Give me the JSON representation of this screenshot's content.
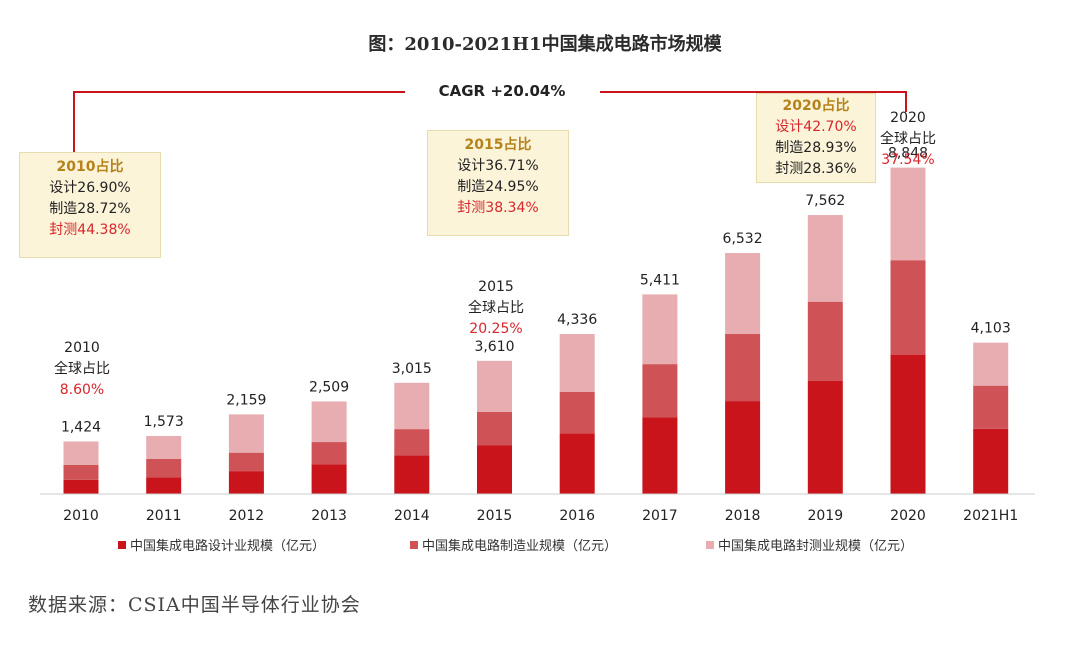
{
  "title": "图：2010-2021H1中国集成电路市场规模",
  "cagr_label": "CAGR +20.04%",
  "source": "数据来源：CSIA中国半导体行业协会",
  "colors": {
    "design": "#c8141a",
    "manufacture": "#cf5356",
    "packaging": "#e7adb0",
    "axis": "#cccccc",
    "highlight": "#d7262c",
    "box_bg": "#fbf4d9",
    "box_head": "#b5821b"
  },
  "chart_data": {
    "type": "bar",
    "stacked": true,
    "categories": [
      "2010",
      "2011",
      "2012",
      "2013",
      "2014",
      "2015",
      "2016",
      "2017",
      "2018",
      "2019",
      "2020",
      "2021H1"
    ],
    "totals": [
      1424,
      1573,
      2159,
      2509,
      3015,
      3610,
      4336,
      5411,
      6532,
      7562,
      8848,
      4103
    ],
    "total_labels": [
      "1,424",
      "1,573",
      "2,159",
      "2,509",
      "3,015",
      "3,610",
      "4,336",
      "5,411",
      "6,532",
      "7,562",
      "8,848",
      "4,103"
    ],
    "series": [
      {
        "name": "中国集成电路设计业规模（亿元）",
        "values": [
          383,
          450,
          620,
          808,
          1047,
          1325,
          1644,
          2073,
          2519,
          3064,
          3778,
          1766
        ]
      },
      {
        "name": "中国集成电路制造业规模（亿元）",
        "values": [
          409,
          499,
          500,
          600,
          712,
          901,
          1127,
          1448,
          1818,
          2149,
          2560,
          1171
        ]
      },
      {
        "name": "中国集成电路封测业规模（亿元）",
        "values": [
          632,
          624,
          1039,
          1101,
          1256,
          1384,
          1565,
          1890,
          2195,
          2349,
          2510,
          1166
        ]
      }
    ],
    "ylim": [
      0,
      9000
    ],
    "legend_position": "bottom",
    "grid": false
  },
  "share_boxes": [
    {
      "id": "2010",
      "head": "2010占比",
      "design": "设计26.90%",
      "manufacture": "制造28.72%",
      "packaging": "封测44.38%"
    },
    {
      "id": "2015",
      "head": "2015占比",
      "design": "设计36.71%",
      "manufacture": "制造24.95%",
      "packaging": "封测38.34%"
    },
    {
      "id": "2020",
      "head": "2020占比",
      "design": "设计42.70%",
      "manufacture": "制造28.93%",
      "packaging": "封测28.36%"
    }
  ],
  "global_share_notes": [
    {
      "year": "2010",
      "label": "全球占比",
      "value": "8.60%"
    },
    {
      "year": "2015",
      "label": "全球占比",
      "value": "20.25%"
    },
    {
      "year": "2020",
      "label": "全球占比",
      "value": "37.54%"
    }
  ]
}
